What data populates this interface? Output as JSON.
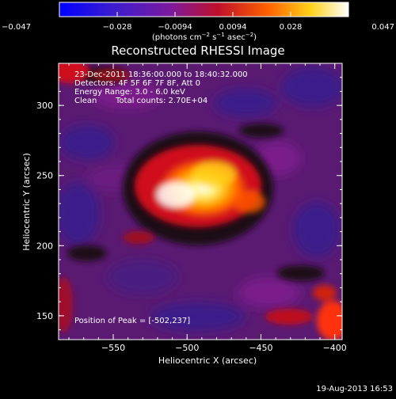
{
  "colorbar": {
    "ticks": [
      "−0.047",
      "−0.028",
      "−0.0094",
      "0.0094",
      "0.028",
      "0.047"
    ],
    "units_main": "(photons cm",
    "units_exp1": "−2",
    "units_mid": " s",
    "units_exp2": "−1",
    "units_end": " asec",
    "units_exp3": "−2",
    "units_close": ")"
  },
  "chart_data": {
    "type": "heatmap",
    "title": "Reconstructed RHESSI Image",
    "xlabel": "Heliocentric X (arcsec)",
    "ylabel": "Heliocentric Y (arcsec)",
    "xlim": [
      -587,
      -395
    ],
    "ylim": [
      133,
      330
    ],
    "xticks": [
      "−550",
      "−500",
      "−450",
      "−400"
    ],
    "yticks": [
      "150",
      "200",
      "250",
      "300"
    ],
    "xtick_values": [
      -550,
      -500,
      -450,
      -400
    ],
    "ytick_values": [
      150,
      200,
      250,
      300
    ],
    "color_range": [
      -0.047,
      0.047
    ],
    "peak": [
      -502,
      237
    ],
    "colors": {
      "low": "#0000ff",
      "mid": "#8a1a8a",
      "high": "#ffffff"
    }
  },
  "annotations": {
    "time_range": "23-Dec-2011 18:36:00.000 to 18:40:32.000",
    "detectors": "Detectors: 4F 5F 6F 7F 8F, Att 0",
    "energy": "Energy Range: 3.0 - 6.0 keV",
    "method": "Clean",
    "counts": "Total counts: 2.70E+04",
    "peak_label": "Position of Peak = [-502,237]"
  },
  "footer": {
    "date": "19-Aug-2013 16:53"
  }
}
